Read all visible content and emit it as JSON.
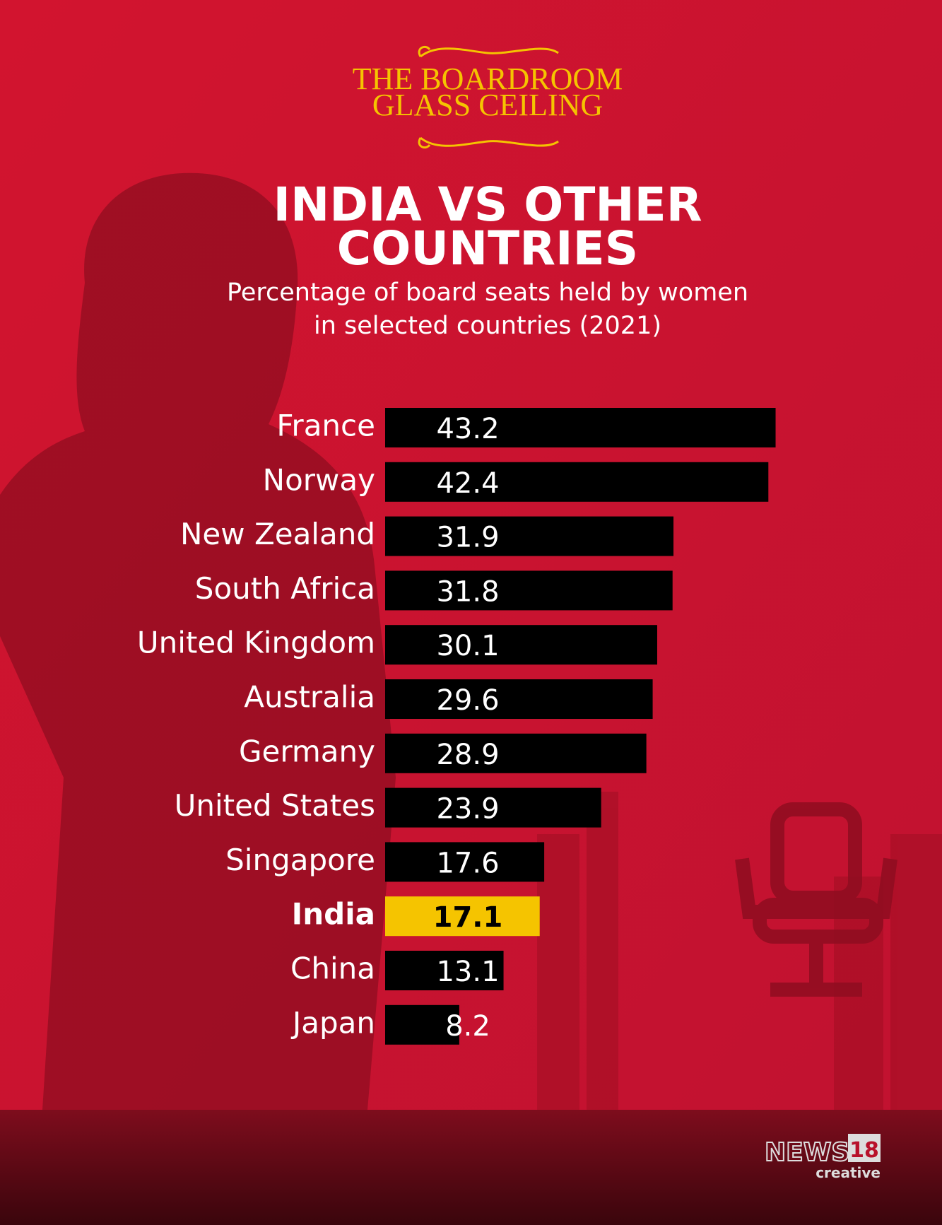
{
  "chart_data": {
    "type": "barh",
    "supertitle": [
      "THE BOARDROOM",
      "GLASS CEILING"
    ],
    "title": [
      "INDIA VS OTHER",
      "COUNTRIES"
    ],
    "subtitle": [
      "Percentage of board seats held by women",
      "in selected countries (2021)"
    ],
    "categories": [
      "France",
      "Norway",
      "New Zealand",
      "South Africa",
      "United Kingdom",
      "Australia",
      "Germany",
      "United States",
      "Singapore",
      "India",
      "China",
      "Japan"
    ],
    "values": [
      43.2,
      42.4,
      31.9,
      31.8,
      30.1,
      29.6,
      28.9,
      23.9,
      17.6,
      17.1,
      13.1,
      8.2
    ],
    "colors": [
      "#000000",
      "#000000",
      "#000000",
      "#000000",
      "#000000",
      "#000000",
      "#000000",
      "#000000",
      "#000000",
      "#f5c400",
      "#000000",
      "#000000"
    ],
    "highlight_color": "#f5c400"
  },
  "brand": {
    "name": "NEWS",
    "number": "18",
    "tag": "creative"
  }
}
